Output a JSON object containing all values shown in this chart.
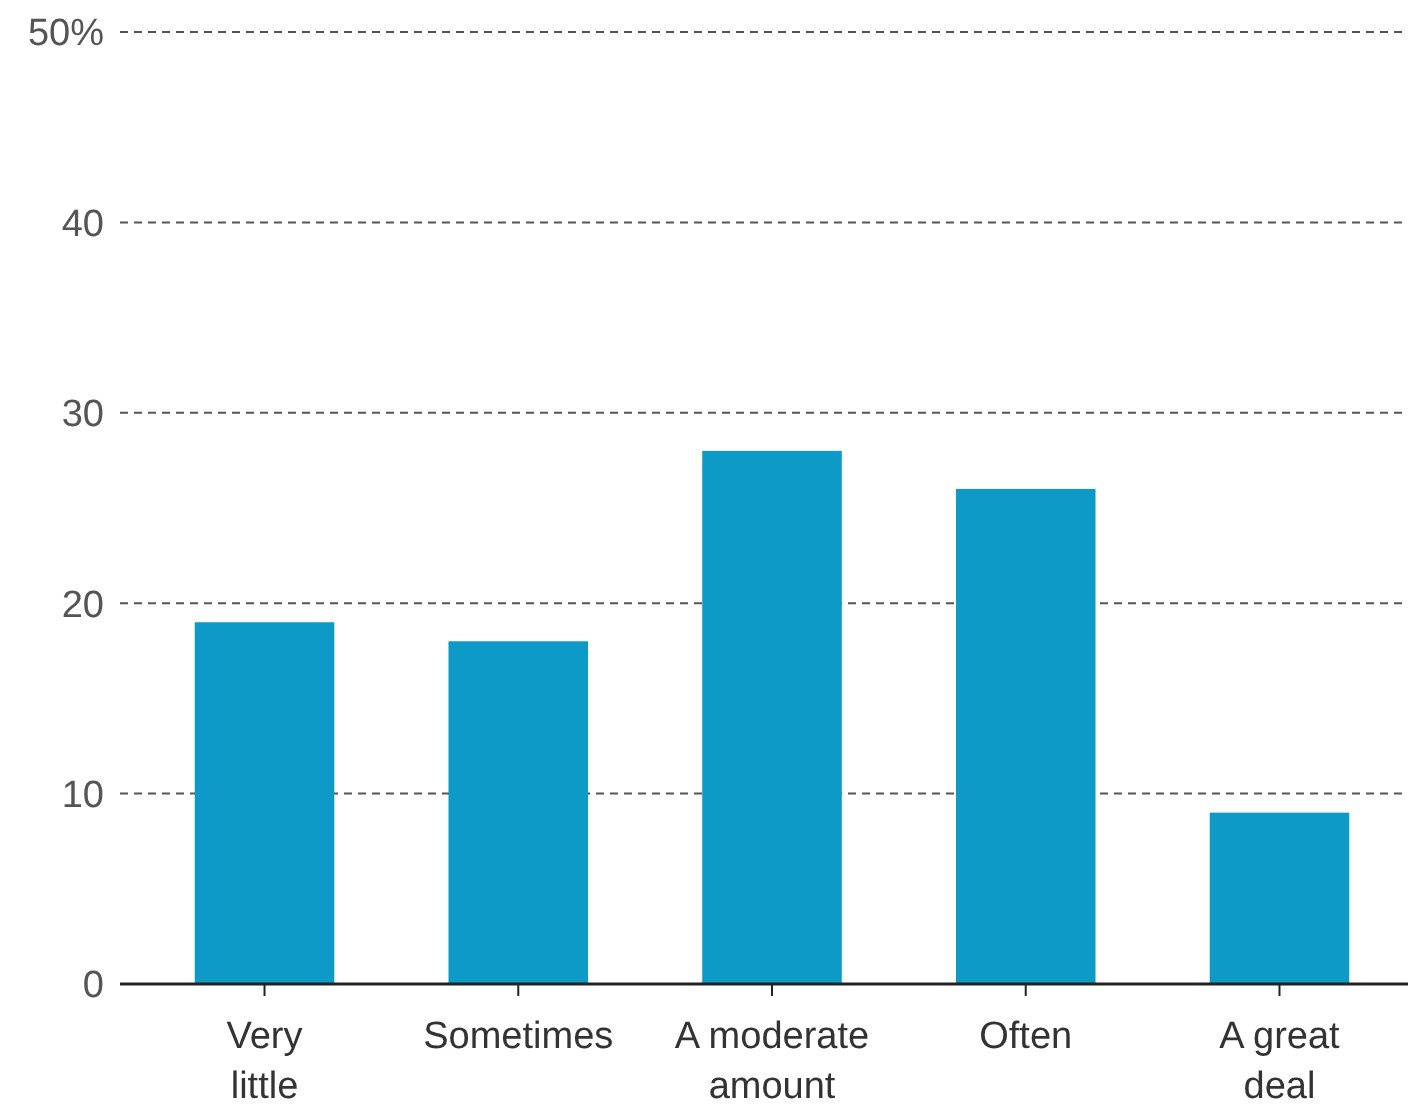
{
  "chart_data": {
    "type": "bar",
    "categories": [
      "Very little",
      "Sometimes",
      "A moderate amount",
      "Often",
      "A great deal"
    ],
    "values": [
      19,
      18,
      28,
      26,
      9
    ],
    "color": "#0e9ac6",
    "ylim": [
      0,
      50
    ],
    "yticks": [
      0,
      10,
      20,
      30,
      40,
      {
        "value": 50,
        "label": "50%"
      }
    ],
    "grid": "y"
  }
}
